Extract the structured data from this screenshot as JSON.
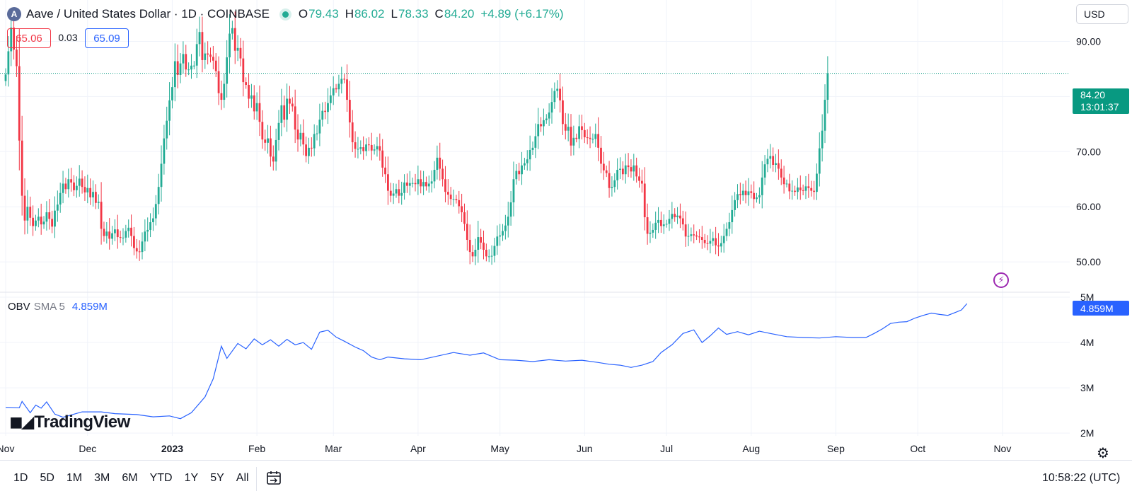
{
  "header": {
    "logo_letter": "A",
    "title": "Aave / United States Dollar · 1D · COINBASE",
    "ohlc": [
      {
        "label": "O",
        "value": "79.43"
      },
      {
        "label": "H",
        "value": "86.02"
      },
      {
        "label": "L",
        "value": "78.33"
      },
      {
        "label": "C",
        "value": "84.20"
      }
    ],
    "change": "+4.89 (+6.17%)"
  },
  "quote": {
    "bid": "65.06",
    "spread": "0.03",
    "ask": "65.09"
  },
  "currency": "USD",
  "price_tag": {
    "price": "84.20",
    "countdown": "13:01:37"
  },
  "obv_legend": {
    "name": "OBV",
    "ma": "SMA 5",
    "value": "4.859M"
  },
  "obv_tag": "4.859M",
  "watermark": "TradingView",
  "toolbar": {
    "timeframes": [
      "1D",
      "5D",
      "1M",
      "3M",
      "6M",
      "YTD",
      "1Y",
      "5Y",
      "All"
    ],
    "clock": "10:58:22 (UTC)"
  },
  "colors": {
    "up": "#22ab94",
    "down": "#f23645",
    "obv": "#2962ff",
    "grid": "#f0f3fa"
  },
  "chart_data": [
    {
      "type": "candlestick",
      "title": "",
      "xlabel": "",
      "ylabel": "",
      "price_ticks": [
        "50.00",
        "60.00",
        "70.00",
        "80.00",
        "90.00"
      ],
      "ylim": [
        44.5,
        97.5
      ],
      "x_ticks": [
        "Nov",
        "Dec",
        "2023",
        "Feb",
        "Mar",
        "Apr",
        "May",
        "Jun",
        "Jul",
        "Aug",
        "Sep",
        "Oct",
        "Nov"
      ],
      "x_tick_dates": [
        "2022-11-01",
        "2022-12-01",
        "2023-01-01",
        "2023-02-01",
        "2023-03-01",
        "2023-04-01",
        "2023-05-01",
        "2023-06-01",
        "2023-07-01",
        "2023-08-01",
        "2023-09-01",
        "2023-10-01",
        "2023-11-01"
      ],
      "start_date": "2022-11-01",
      "last_price": 84.2,
      "grid": true,
      "closes": [
        84.0,
        88.2,
        92.5,
        88.5,
        85.5,
        72.0,
        62.0,
        57.5,
        60.0,
        58.0,
        56.5,
        57.5,
        58.2,
        56.8,
        57.3,
        59.0,
        57.8,
        56.4,
        59.3,
        60.4,
        62.5,
        64.2,
        63.2,
        65.0,
        64.4,
        63.0,
        63.8,
        65.1,
        63.6,
        62.6,
        63.4,
        61.7,
        62.7,
        60.7,
        60.9,
        56.0,
        54.7,
        55.5,
        54.2,
        55.2,
        55.9,
        54.5,
        54.4,
        54.4,
        55.6,
        56.2,
        54.7,
        52.5,
        51.9,
        51.8,
        53.7,
        55.5,
        55.8,
        57.2,
        57.9,
        60.5,
        63.6,
        67.8,
        72.4,
        75.6,
        79.3,
        81.7,
        86.4,
        83.9,
        86.0,
        87.7,
        84.9,
        84.9,
        85.6,
        85.6,
        89.5,
        91.7,
        86.6,
        87.8,
        87.6,
        87.2,
        86.5,
        84.6,
        80.6,
        79.4,
        82.3,
        87.1,
        91.4,
        92.4,
        88.3,
        88.8,
        86.9,
        82.6,
        82.1,
        79.6,
        80.2,
        77.3,
        78.8,
        75.4,
        72.2,
        71.6,
        72.4,
        69.1,
        68.2,
        72.1,
        75.2,
        78.4,
        75.8,
        79.6,
        78.7,
        78.2,
        74.0,
        72.2,
        73.4,
        71.3,
        69.2,
        70.7,
        70.6,
        73.2,
        73.3,
        75.8,
        77.4,
        77.2,
        78.8,
        80.2,
        81.5,
        81.3,
        82.3,
        83.2,
        83.1,
        79.4,
        75.3,
        71.7,
        70.5,
        70.5,
        70.8,
        70.1,
        71.3,
        71.2,
        70.2,
        70.4,
        71.0,
        70.2,
        67.1,
        65.9,
        62.9,
        62.0,
        62.4,
        63.2,
        62.0,
        62.5,
        64.4,
        63.8,
        64.3,
        64.3,
        64.1,
        65.0,
        63.7,
        64.5,
        63.7,
        64.2,
        64.6,
        66.7,
        68.9,
        66.9,
        65.0,
        62.7,
        62.2,
        61.4,
        61.4,
        61.2,
        60.1,
        59.0,
        56.9,
        54.0,
        51.8,
        51.0,
        52.2,
        54.5,
        53.5,
        52.2,
        51.0,
        51.0,
        51.1,
        52.9,
        54.6,
        54.8,
        55.6,
        56.6,
        58.2,
        60.8,
        65.0,
        66.5,
        65.9,
        67.5,
        67.9,
        68.6,
        70.3,
        70.7,
        72.8,
        75.0,
        74.6,
        75.7,
        76.0,
        77.1,
        79.0,
        81.0,
        81.4,
        79.3,
        75.0,
        73.8,
        74.5,
        71.1,
        72.5,
        72.3,
        74.6,
        73.9,
        72.6,
        72.5,
        72.3,
        72.3,
        73.2,
        70.7,
        67.8,
        66.6,
        66.1,
        63.4,
        63.6,
        64.8,
        66.7,
        66.9,
        65.9,
        67.5,
        67.2,
        66.4,
        67.5,
        65.5,
        64.7,
        64.2,
        58.1,
        55.1,
        55.3,
        55.8,
        57.1,
        57.6,
        56.5,
        56.8,
        56.9,
        57.8,
        58.7,
        58.1,
        58.4,
        57.9,
        56.8,
        54.6,
        54.7,
        55.0,
        54.8,
        54.6,
        54.5,
        54.0,
        53.4,
        53.3,
        53.8,
        54.3,
        53.0,
        52.8,
        53.4,
        54.7,
        56.0,
        57.2,
        59.4,
        61.2,
        62.3,
        62.1,
        62.9,
        62.1,
        62.8,
        62.5,
        61.4,
        61.7,
        62.1,
        65.3,
        67.7,
        68.7,
        69.2,
        67.6,
        67.9,
        66.9,
        65.3,
        64.1,
        64.2,
        62.8,
        62.9,
        62.7,
        63.5,
        63.0,
        62.9,
        63.7,
        63.4,
        62.9,
        62.7,
        66.0,
        70.6,
        73.8,
        79.4,
        84.2
      ]
    },
    {
      "type": "line",
      "title": "",
      "series": [
        {
          "name": "OBV",
          "color": "#2962ff"
        }
      ],
      "value_ticks": [
        "2M",
        "3M",
        "4M",
        "5M"
      ],
      "ylim": [
        1.94,
        5.11
      ],
      "unit": "M",
      "last_value": 4.859,
      "obv_points": [
        [
          0,
          2.57
        ],
        [
          5,
          2.56
        ],
        [
          6,
          2.7
        ],
        [
          9,
          2.45
        ],
        [
          11,
          2.62
        ],
        [
          13,
          2.55
        ],
        [
          15,
          2.69
        ],
        [
          18,
          2.42
        ],
        [
          21,
          2.35
        ],
        [
          28,
          2.47
        ],
        [
          35,
          2.47
        ],
        [
          40,
          2.43
        ],
        [
          48,
          2.41
        ],
        [
          54,
          2.36
        ],
        [
          60,
          2.38
        ],
        [
          64,
          2.32
        ],
        [
          68,
          2.45
        ],
        [
          73,
          2.8
        ],
        [
          76,
          3.2
        ],
        [
          79,
          3.92
        ],
        [
          81,
          3.65
        ],
        [
          85,
          3.98
        ],
        [
          88,
          3.86
        ],
        [
          91,
          4.08
        ],
        [
          94,
          3.95
        ],
        [
          97,
          4.06
        ],
        [
          100,
          3.92
        ],
        [
          103,
          4.07
        ],
        [
          106,
          3.95
        ],
        [
          109,
          4.0
        ],
        [
          112,
          3.85
        ],
        [
          115,
          4.23
        ],
        [
          118,
          4.27
        ],
        [
          121,
          4.12
        ],
        [
          124,
          4.03
        ],
        [
          128,
          3.9
        ],
        [
          131,
          3.82
        ],
        [
          134,
          3.68
        ],
        [
          137,
          3.62
        ],
        [
          140,
          3.68
        ],
        [
          146,
          3.64
        ],
        [
          152,
          3.62
        ],
        [
          158,
          3.7
        ],
        [
          164,
          3.78
        ],
        [
          170,
          3.72
        ],
        [
          175,
          3.77
        ],
        [
          181,
          3.62
        ],
        [
          187,
          3.61
        ],
        [
          193,
          3.58
        ],
        [
          199,
          3.62
        ],
        [
          205,
          3.59
        ],
        [
          211,
          3.61
        ],
        [
          217,
          3.56
        ],
        [
          221,
          3.52
        ],
        [
          225,
          3.5
        ],
        [
          229,
          3.45
        ],
        [
          233,
          3.5
        ],
        [
          237,
          3.58
        ],
        [
          240,
          3.78
        ],
        [
          244,
          3.95
        ],
        [
          248,
          4.2
        ],
        [
          252,
          4.28
        ],
        [
          255,
          4.0
        ],
        [
          258,
          4.15
        ],
        [
          261,
          4.32
        ],
        [
          264,
          4.18
        ],
        [
          268,
          4.24
        ],
        [
          272,
          4.17
        ],
        [
          276,
          4.25
        ],
        [
          280,
          4.2
        ],
        [
          286,
          4.13
        ],
        [
          292,
          4.11
        ],
        [
          298,
          4.1
        ],
        [
          304,
          4.13
        ],
        [
          310,
          4.11
        ],
        [
          315,
          4.11
        ],
        [
          318,
          4.2
        ],
        [
          321,
          4.3
        ],
        [
          324,
          4.42
        ],
        [
          327,
          4.45
        ],
        [
          330,
          4.46
        ],
        [
          333,
          4.54
        ],
        [
          336,
          4.6
        ],
        [
          339,
          4.65
        ],
        [
          342,
          4.62
        ],
        [
          345,
          4.6
        ],
        [
          348,
          4.67
        ],
        [
          350,
          4.72
        ],
        [
          352,
          4.859
        ]
      ]
    }
  ]
}
